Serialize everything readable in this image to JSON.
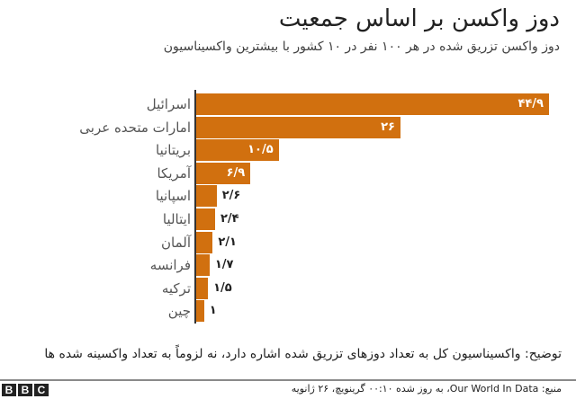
{
  "header": {
    "title": "دوز واکسن بر اساس جمعیت",
    "subtitle": "دوز واکسن تزریق شده در هر ۱۰۰ نفر در ۱۰ کشور با بیشترین واکسیناسیون"
  },
  "chart_data": {
    "type": "bar",
    "orientation": "horizontal",
    "title": "دوز واکسن بر اساس جمعیت",
    "subtitle": "دوز واکسن تزریق شده در هر ۱۰۰ نفر در ۱۰ کشور با بیشترین واکسیناسیون",
    "xlabel": "",
    "ylabel": "",
    "grid": false,
    "legend": null,
    "bar_color": "#D1700F",
    "categories": [
      "اسرائیل",
      "امارات متحده عربی",
      "بریتانیا",
      "آمریکا",
      "اسپانیا",
      "ایتالیا",
      "آلمان",
      "فرانسه",
      "ترکیه",
      "چین"
    ],
    "values": [
      44.9,
      26,
      10.5,
      6.9,
      2.6,
      2.4,
      2.1,
      1.7,
      1.5,
      1
    ],
    "value_labels": [
      "۴۴/۹",
      "۲۶",
      "۱۰/۵",
      "۶/۹",
      "۲/۶",
      "۲/۴",
      "۲/۱",
      "۱/۷",
      "۱/۵",
      "۱"
    ],
    "xlim": [
      0,
      45
    ]
  },
  "note": "توضیح: واکسیناسیون کل به تعداد دوزهای تزریق شده اشاره دارد، نه لزوماً به تعداد واکسینه شده ها",
  "footer": {
    "logo": [
      "B",
      "B",
      "C"
    ],
    "source": "منبع: Our World In Data، به روز شده ۰۰:۱۰ گرینویچ، ۲۶ ژانویه"
  }
}
